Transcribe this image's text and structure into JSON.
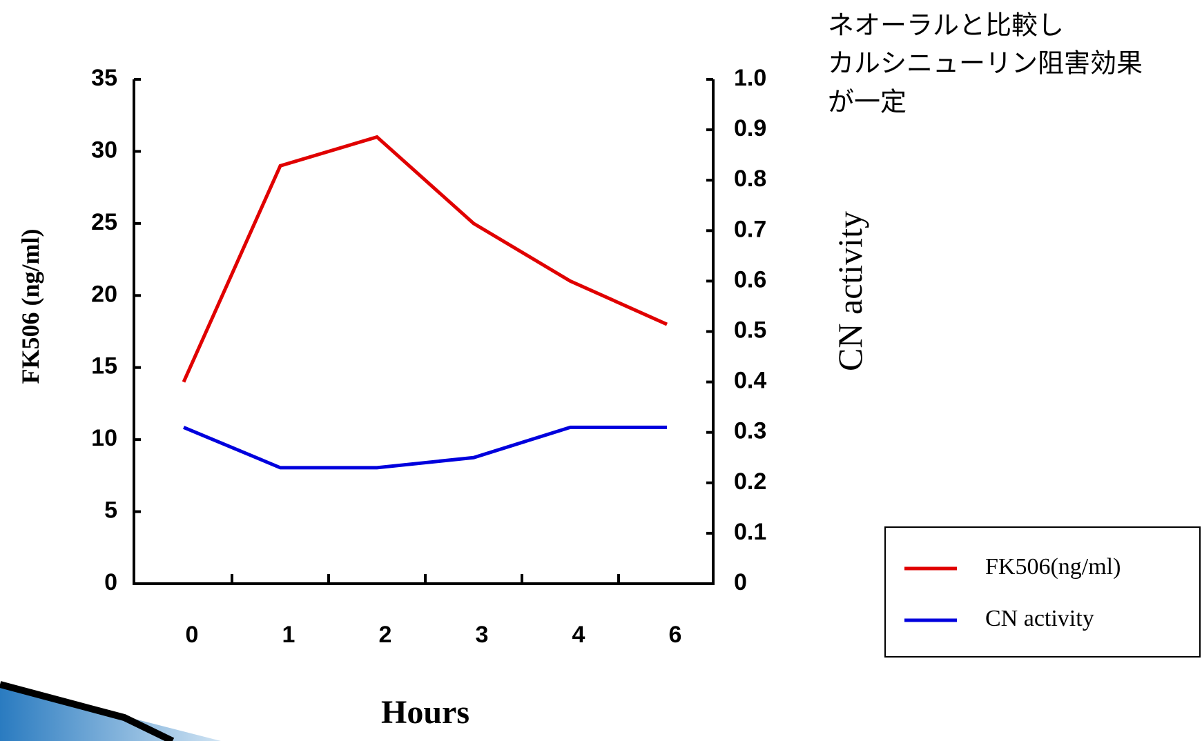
{
  "chart_data": {
    "type": "line",
    "categories": [
      "0",
      "1",
      "2",
      "3",
      "4",
      "6"
    ],
    "x_label": "Hours",
    "y_label": "FK506 (ng/ml)",
    "y2_label": "CN activity",
    "annotation": [
      "ネオーラルと比較し",
      "カルシニューリン阻害効果",
      "が一定"
    ],
    "series": [
      {
        "name": "FK506(ng/ml)",
        "color": "#e00000",
        "values": [
          14,
          29,
          31,
          25,
          21,
          18
        ]
      },
      {
        "name": "CN activity",
        "color": "#0000dd",
        "axis": "y2",
        "values": [
          0.31,
          0.23,
          0.23,
          0.25,
          0.31,
          0.31
        ]
      }
    ],
    "ylim": [
      0,
      35
    ],
    "yticks": [
      0,
      5,
      10,
      15,
      20,
      25,
      30,
      35
    ],
    "y2lim": [
      0,
      1
    ],
    "y2ticks": [
      0,
      0.1,
      0.2,
      0.3,
      0.4,
      0.5,
      0.6,
      0.7,
      0.8,
      0.9,
      {
        "value": 1,
        "label": "1.0"
      }
    ],
    "legend": "right"
  }
}
